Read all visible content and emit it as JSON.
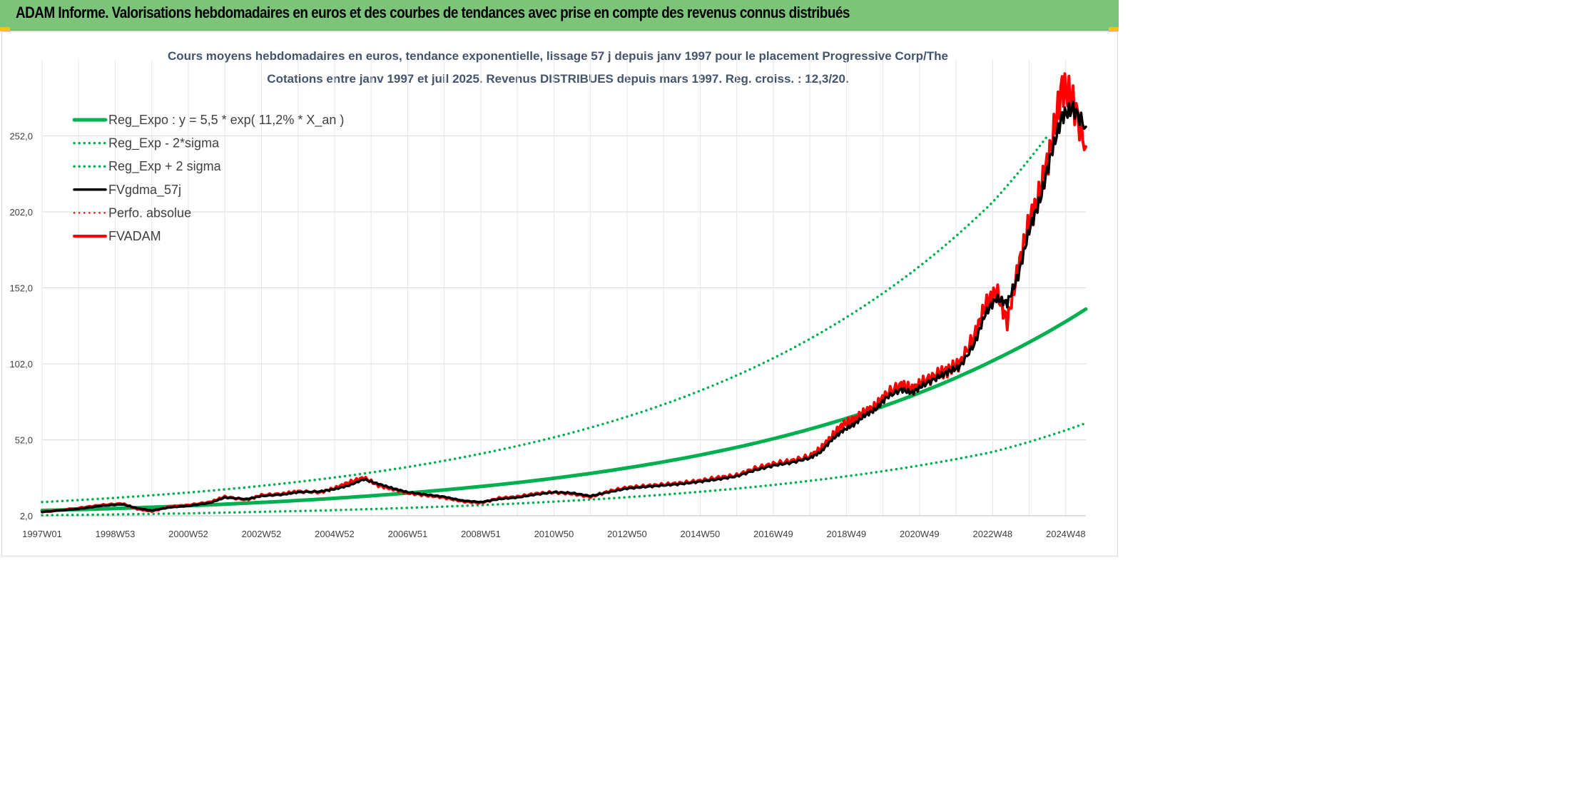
{
  "header": {
    "title": "ADAM Informe. Valorisations hebdomadaires en euros et des courbes de tendances avec prise en compte des revenus connus distribués"
  },
  "colors": {
    "header_bg": "#7cc47a",
    "reg_green": "#00b050",
    "fv_black": "#000000",
    "adam_red": "#ff0000",
    "grid": "#d9d9d9"
  },
  "chart_data": {
    "type": "line",
    "title_line1": "Cours moyens hebdomadaires en euros, tendance exponentielle, lissage 57 j depuis janv 1997 pour le placement Progressive Corp/The",
    "title_line2": "Cotations entre janv 1997 et juil 2025. Revenus DISTRIBUES depuis mars 1997. Reg. croiss. : 12,3/20.",
    "x_range": [
      1997.0,
      2025.55
    ],
    "ylim": [
      2.0,
      302.0
    ],
    "y_ticks": [
      "2,0",
      "52,0",
      "102,0",
      "152,0",
      "202,0",
      "252,0"
    ],
    "y_tick_values": [
      2,
      52,
      102,
      152,
      202,
      252
    ],
    "x_ticks": [
      "1997W01",
      "1998W53",
      "2000W52",
      "2002W52",
      "2004W52",
      "2006W51",
      "2008W51",
      "2010W50",
      "2012W50",
      "2014W50",
      "2016W49",
      "2018W49",
      "2020W49",
      "2022W48",
      "2024W48"
    ],
    "x_tick_values": [
      1997.0,
      1999.0,
      2001.0,
      2003.0,
      2005.0,
      2007.0,
      2009.0,
      2011.0,
      2013.0,
      2015.0,
      2017.0,
      2019.0,
      2021.0,
      2023.0,
      2025.0
    ],
    "grid": true,
    "legend_position": "top-left",
    "legend": [
      {
        "label": "Reg_Expo : y = 5,5 * exp( 11,2% *  X_an )",
        "color": "#00b050",
        "style": "solid",
        "width": 5
      },
      {
        "label": "Reg_Exp - 2*sigma",
        "color": "#00b050",
        "style": "dotted",
        "width": 3.5
      },
      {
        "label": "Reg_Exp + 2 sigma",
        "color": "#00b050",
        "style": "dotted",
        "width": 3.5
      },
      {
        "label": "FVgdma_57j",
        "color": "#000000",
        "style": "solid",
        "width": 3.5
      },
      {
        "label": "Perfo. absolue",
        "color": "#ff0000",
        "style": "dotted",
        "width": 2.5
      },
      {
        "label": "FVADAM",
        "color": "#ff0000",
        "style": "solid",
        "width": 4
      }
    ],
    "series": [
      {
        "name": "Reg_Expo : y = 5,5 * exp( 11,2% *  X_an )",
        "x": [
          1997,
          1999,
          2001,
          2003,
          2005,
          2007,
          2009,
          2011,
          2013,
          2015,
          2017,
          2019,
          2021,
          2023,
          2025.55
        ],
        "y": [
          5.5,
          6.8,
          8.6,
          10.8,
          13.5,
          17.0,
          21.3,
          26.7,
          33.5,
          42.0,
          52.7,
          66.1,
          82.9,
          104.0,
          138.0
        ]
      },
      {
        "name": "Reg_Exp - 2*sigma",
        "x": [
          1997,
          1999,
          2001,
          2003,
          2005,
          2007,
          2009,
          2011,
          2013,
          2015,
          2017,
          2019,
          2021,
          2023,
          2025.55
        ],
        "y": [
          2.3,
          2.9,
          3.6,
          4.6,
          5.7,
          7.2,
          9.0,
          11.3,
          14.2,
          17.8,
          22.3,
          28.0,
          35.1,
          44.0,
          63.0
        ]
      },
      {
        "name": "Reg_Exp + 2 sigma",
        "x": [
          1997,
          1999,
          2001,
          2003,
          2005,
          2007,
          2009,
          2011,
          2013,
          2015,
          2017,
          2019,
          2021,
          2023,
          2024.5
        ],
        "y": [
          11.0,
          13.8,
          17.3,
          21.7,
          27.2,
          34.1,
          42.8,
          53.6,
          67.2,
          84.3,
          105.7,
          132.6,
          166.2,
          208.4,
          252.0
        ]
      },
      {
        "name": "FVgdma_57j",
        "x": [
          1997.0,
          1998.0,
          1998.6,
          1999.2,
          1999.6,
          2000.0,
          2000.5,
          2001.0,
          2001.6,
          2002.0,
          2002.6,
          2003.0,
          2003.6,
          2004.0,
          2004.6,
          2005.0,
          2005.4,
          2005.8,
          2006.2,
          2006.6,
          2007.0,
          2007.5,
          2008.0,
          2008.5,
          2009.0,
          2009.5,
          2010.0,
          2010.5,
          2011.0,
          2011.5,
          2012.0,
          2012.5,
          2013.0,
          2013.5,
          2014.0,
          2014.5,
          2015.0,
          2015.5,
          2016.0,
          2016.5,
          2017.0,
          2017.5,
          2018.0,
          2018.3,
          2018.6,
          2018.9,
          2019.2,
          2019.5,
          2019.8,
          2020.1,
          2020.5,
          2020.8,
          2021.1,
          2021.5,
          2021.8,
          2022.1,
          2022.5,
          2022.8,
          2023.1,
          2023.4,
          2023.7,
          2024.0,
          2024.3,
          2024.6,
          2024.9,
          2025.2,
          2025.55
        ],
        "y": [
          4.5,
          6.5,
          8.5,
          9.5,
          7.0,
          5.5,
          7.5,
          8.5,
          10.5,
          14.0,
          13.0,
          15.0,
          16.0,
          17.5,
          18.0,
          19.5,
          22.0,
          26.0,
          23.0,
          20.0,
          17.5,
          16.0,
          14.5,
          12.0,
          11.0,
          13.0,
          14.0,
          16.0,
          17.5,
          17.0,
          15.0,
          17.5,
          20.0,
          21.0,
          22.0,
          23.0,
          24.5,
          26.0,
          28.0,
          32.0,
          35.0,
          37.0,
          40.0,
          44.0,
          52.0,
          58.0,
          62.0,
          68.0,
          72.0,
          80.0,
          85.0,
          83.0,
          88.0,
          93.0,
          97.0,
          100.0,
          115.0,
          135.0,
          145.0,
          142.0,
          160.0,
          190.0,
          210.0,
          240.0,
          265.0,
          270.0,
          258.0
        ]
      },
      {
        "name": "FVADAM",
        "x": [
          1997.0,
          1998.0,
          1998.6,
          1999.2,
          1999.6,
          2000.0,
          2000.5,
          2001.0,
          2001.6,
          2002.0,
          2002.6,
          2003.0,
          2003.6,
          2004.0,
          2004.6,
          2005.0,
          2005.4,
          2005.8,
          2006.2,
          2006.6,
          2007.0,
          2007.5,
          2008.0,
          2008.5,
          2009.0,
          2009.5,
          2010.0,
          2010.5,
          2011.0,
          2011.5,
          2012.0,
          2012.5,
          2013.0,
          2013.5,
          2014.0,
          2014.5,
          2015.0,
          2015.5,
          2016.0,
          2016.5,
          2017.0,
          2017.5,
          2018.0,
          2018.3,
          2018.6,
          2018.9,
          2019.2,
          2019.5,
          2019.8,
          2020.1,
          2020.5,
          2020.8,
          2021.1,
          2021.5,
          2021.8,
          2022.1,
          2022.5,
          2022.8,
          2023.1,
          2023.4,
          2023.7,
          2024.0,
          2024.3,
          2024.6,
          2024.9,
          2025.2,
          2025.55
        ],
        "y": [
          4.5,
          7.0,
          9.0,
          10.0,
          6.5,
          5.0,
          8.0,
          9.0,
          11.0,
          14.5,
          12.5,
          15.5,
          16.5,
          18.0,
          17.5,
          20.0,
          24.0,
          27.0,
          22.0,
          19.5,
          17.0,
          15.5,
          14.0,
          11.5,
          10.5,
          13.5,
          14.5,
          16.5,
          17.5,
          16.5,
          14.5,
          18.0,
          20.5,
          21.5,
          22.5,
          23.5,
          25.0,
          27.0,
          28.5,
          33.0,
          36.0,
          38.0,
          41.0,
          46.0,
          54.0,
          62.0,
          65.0,
          70.0,
          74.0,
          82.0,
          88.0,
          85.0,
          90.0,
          95.0,
          98.0,
          102.0,
          120.0,
          140.0,
          150.0,
          130.0,
          165.0,
          195.0,
          215.0,
          245.0,
          285.0,
          275.0,
          245.0
        ]
      }
    ]
  }
}
